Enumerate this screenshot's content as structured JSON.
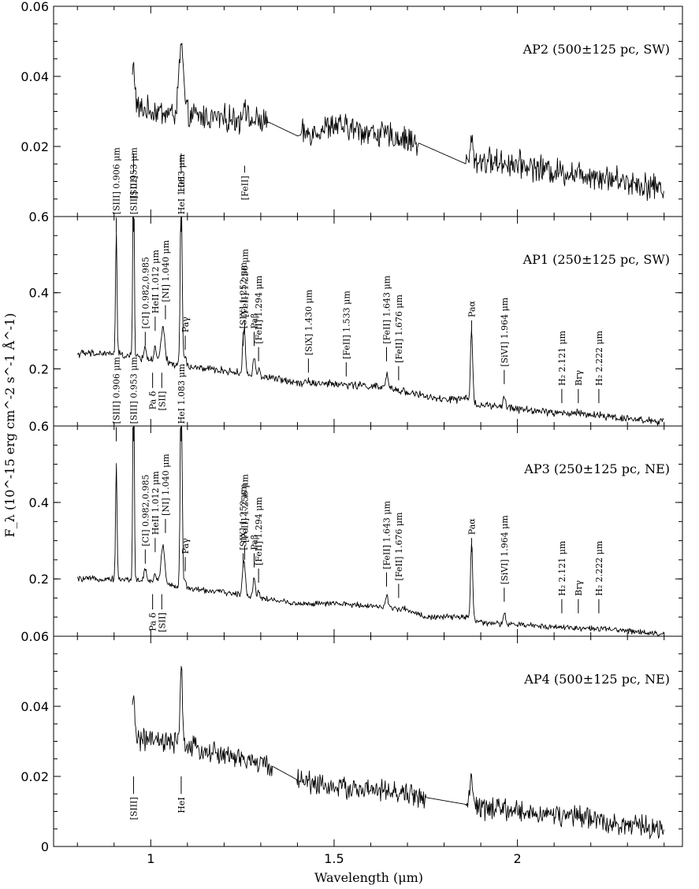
{
  "chart_data": {
    "type": "line",
    "xlabel": "Wavelength (μm)",
    "ylabel": "F_λ (10^-15 erg cm^-2 s^-1 Å^-1)",
    "xlim": [
      0.735,
      2.45
    ],
    "x_ticks": [
      1,
      1.5,
      2
    ],
    "x_tick_labels": [
      "1",
      "1.5",
      "2"
    ],
    "panels": [
      {
        "name": "AP2 (500±125 pc, SW)",
        "ylim": [
          0,
          0.06
        ],
        "y_ticks": [
          0.02,
          0.04,
          0.06
        ],
        "y_tick_labels": [
          "0.02",
          "0.04",
          "0.06"
        ],
        "series": [
          {
            "continuum": [
              [
                0.95,
                0.031
              ],
              [
                1.08,
                0.029
              ],
              [
                1.2,
                0.028
              ],
              [
                1.32,
                0.027
              ],
              [
                1.4,
                0.023
              ],
              [
                1.5,
                0.026
              ],
              [
                1.6,
                0.024
              ],
              [
                1.7,
                0.022
              ],
              [
                1.73,
                0.021
              ],
              [
                1.86,
                0.015
              ],
              [
                1.9,
                0.016
              ],
              [
                2.0,
                0.015
              ],
              [
                2.1,
                0.013
              ],
              [
                2.2,
                0.012
              ],
              [
                2.3,
                0.01
              ],
              [
                2.4,
                0.008
              ]
            ],
            "gaps": [
              [
                1.32,
                1.41
              ],
              [
                1.73,
                1.86
              ]
            ],
            "noise": 0.003,
            "lines": [
              [
                1.083,
                0.02,
                0.006
              ],
              [
                0.953,
                0.012,
                0.004
              ],
              [
                1.256,
                0.006,
                0.004
              ],
              [
                1.875,
                0.006,
                0.004
              ]
            ]
          }
        ],
        "annotations": [
          {
            "text": "[SIII]",
            "x": 0.953,
            "y_top": 0.018,
            "y_bot": 0.0125,
            "dir": "down"
          },
          {
            "text": "HeI",
            "x": 1.083,
            "y_top": 0.018,
            "y_bot": 0.0125,
            "dir": "down"
          },
          {
            "text": "[FeII]",
            "x": 1.256,
            "y_top": 0.0145,
            "y_bot": 0.0125,
            "dir": "down"
          }
        ]
      },
      {
        "name": "AP1 (250±125 pc, SW)",
        "ylim": [
          0.05,
          0.6
        ],
        "y_ticks": [
          0.2,
          0.4,
          0.6
        ],
        "y_tick_labels": [
          "0.2",
          "0.4",
          "0.6"
        ],
        "series": [
          {
            "continuum": [
              [
                0.8,
                0.24
              ],
              [
                0.9,
                0.24
              ],
              [
                1.0,
                0.225
              ],
              [
                1.1,
                0.205
              ],
              [
                1.2,
                0.195
              ],
              [
                1.3,
                0.18
              ],
              [
                1.4,
                0.165
              ],
              [
                1.5,
                0.16
              ],
              [
                1.6,
                0.155
              ],
              [
                1.7,
                0.14
              ],
              [
                1.78,
                0.12
              ],
              [
                1.86,
                0.12
              ],
              [
                1.9,
                0.105
              ],
              [
                2.0,
                0.095
              ],
              [
                2.1,
                0.085
              ],
              [
                2.2,
                0.08
              ],
              [
                2.3,
                0.07
              ],
              [
                2.4,
                0.06
              ]
            ],
            "gaps": [],
            "noise": 0.008,
            "lines": [
              [
                0.906,
                0.32,
                0.002
              ],
              [
                0.953,
                0.55,
                0.002
              ],
              [
                0.985,
                0.03,
                0.003
              ],
              [
                1.012,
                0.03,
                0.003
              ],
              [
                1.033,
                0.09,
                0.005
              ],
              [
                1.083,
                0.5,
                0.0025
              ],
              [
                1.094,
                0.03,
                0.003
              ],
              [
                1.252,
                0.06,
                0.003
              ],
              [
                1.256,
                0.08,
                0.003
              ],
              [
                1.282,
                0.05,
                0.003
              ],
              [
                1.294,
                0.02,
                0.003
              ],
              [
                1.43,
                0.01,
                0.003
              ],
              [
                1.644,
                0.04,
                0.003
              ],
              [
                1.875,
                0.19,
                0.003
              ],
              [
                1.964,
                0.03,
                0.003
              ],
              [
                2.166,
                0.008,
                0.003
              ]
            ]
          }
        ],
        "annotations": [
          {
            "text": "[SIII] 0.906 μm",
            "x": 0.906,
            "y_top": 0.55,
            "y_bot": 0.56,
            "dir": "up"
          },
          {
            "text": "[SIII] 0.953 μm",
            "x": 0.953,
            "y_top": 0.55,
            "y_bot": 0.56,
            "dir": "up"
          },
          {
            "text": "[CI] 0.982,0.985",
            "x": 0.985,
            "y_top": 0.3,
            "y_bot": 0.26,
            "dir": "up"
          },
          {
            "text": "HeII 1.012 μm",
            "x": 1.012,
            "y_top": 0.35,
            "y_bot": 0.3,
            "dir": "up"
          },
          {
            "text": "[NI] 1.040 μm",
            "x": 1.04,
            "y_top": 0.35,
            "y_bot": 0.33,
            "dir": "up"
          },
          {
            "text": "HeI 1.083 μm",
            "x": 1.083,
            "y_top": 0.55,
            "y_bot": 0.56,
            "dir": "up"
          },
          {
            "text": "Paγ",
            "x": 1.094,
            "y_top": 0.3,
            "y_bot": 0.25,
            "dir": "up"
          },
          {
            "text": "[SIX] 1.252 μm",
            "x": 1.252,
            "y_top": 0.3,
            "y_bot": 0.26,
            "dir": "up"
          },
          {
            "text": "[FeII] 1.256 μm",
            "x": 1.256,
            "y_top": 0.32,
            "y_bot": 0.29,
            "dir": "up"
          },
          {
            "text": "Paβ",
            "x": 1.282,
            "y_top": 0.29,
            "y_bot": 0.26,
            "dir": "up"
          },
          {
            "text": "[FeII] 1.294 μm",
            "x": 1.294,
            "y_top": 0.25,
            "y_bot": 0.22,
            "dir": "up"
          },
          {
            "text": "[SiX] 1.430 μm",
            "x": 1.43,
            "y_top": 0.23,
            "y_bot": 0.19,
            "dir": "up"
          },
          {
            "text": "[FeII] 1.533 μm",
            "x": 1.533,
            "y_top": 0.2,
            "y_bot": 0.18,
            "dir": "up"
          },
          {
            "text": "[FeII] 1.643 μm",
            "x": 1.643,
            "y_top": 0.26,
            "y_bot": 0.22,
            "dir": "up"
          },
          {
            "text": "[FeII] 1.676 μm",
            "x": 1.676,
            "y_top": 0.2,
            "y_bot": 0.17,
            "dir": "up"
          },
          {
            "text": "Paα",
            "x": 1.875,
            "y_top": 0.34,
            "y_bot": 0.29,
            "dir": "up"
          },
          {
            "text": "[SiVI] 1.964 μm",
            "x": 1.964,
            "y_top": 0.2,
            "y_bot": 0.16,
            "dir": "up"
          },
          {
            "text": "H₂ 2.121 μm",
            "x": 2.121,
            "y_top": 0.15,
            "y_bot": 0.11,
            "dir": "up"
          },
          {
            "text": "Brγ",
            "x": 2.166,
            "y_top": 0.15,
            "y_bot": 0.11,
            "dir": "up"
          },
          {
            "text": "H₂ 2.222 μm",
            "x": 2.222,
            "y_top": 0.15,
            "y_bot": 0.11,
            "dir": "up"
          },
          {
            "text": "Pa δ",
            "x": 1.005,
            "y_top": 0.19,
            "y_bot": 0.15,
            "dir": "down"
          },
          {
            "text": "[SII]",
            "x": 1.03,
            "y_top": 0.19,
            "y_bot": 0.15,
            "dir": "down"
          }
        ]
      },
      {
        "name": "AP3 (250±125 pc, NE)",
        "ylim": [
          0.05,
          0.6
        ],
        "y_ticks": [
          0.2,
          0.4,
          0.6
        ],
        "y_tick_labels": [
          "0.2",
          "0.4",
          "0.6"
        ],
        "series": [
          {
            "continuum": [
              [
                0.8,
                0.2
              ],
              [
                0.9,
                0.2
              ],
              [
                1.0,
                0.195
              ],
              [
                1.1,
                0.175
              ],
              [
                1.2,
                0.165
              ],
              [
                1.3,
                0.15
              ],
              [
                1.4,
                0.135
              ],
              [
                1.5,
                0.135
              ],
              [
                1.6,
                0.13
              ],
              [
                1.7,
                0.12
              ],
              [
                1.75,
                0.1
              ],
              [
                1.86,
                0.1
              ],
              [
                1.9,
                0.085
              ],
              [
                2.0,
                0.08
              ],
              [
                2.1,
                0.075
              ],
              [
                2.2,
                0.07
              ],
              [
                2.3,
                0.065
              ],
              [
                2.4,
                0.055
              ]
            ],
            "gaps": [],
            "noise": 0.006,
            "lines": [
              [
                0.906,
                0.3,
                0.002
              ],
              [
                0.953,
                0.6,
                0.002
              ],
              [
                0.985,
                0.03,
                0.003
              ],
              [
                1.012,
                0.02,
                0.003
              ],
              [
                1.033,
                0.1,
                0.005
              ],
              [
                1.083,
                0.6,
                0.0025
              ],
              [
                1.094,
                0.02,
                0.003
              ],
              [
                1.252,
                0.06,
                0.003
              ],
              [
                1.256,
                0.06,
                0.003
              ],
              [
                1.282,
                0.05,
                0.003
              ],
              [
                1.294,
                0.02,
                0.003
              ],
              [
                1.644,
                0.03,
                0.003
              ],
              [
                1.875,
                0.2,
                0.003
              ],
              [
                1.964,
                0.03,
                0.003
              ]
            ]
          }
        ],
        "annotations": [
          {
            "text": "[SIII] 0.906 μm",
            "x": 0.906,
            "y_top": 0.55,
            "y_bot": 0.56,
            "dir": "up"
          },
          {
            "text": "[SIII] 0.953 μm",
            "x": 0.953,
            "y_top": 0.55,
            "y_bot": 0.56,
            "dir": "up"
          },
          {
            "text": "[CI] 0.982,0.985",
            "x": 0.985,
            "y_top": 0.27,
            "y_bot": 0.24,
            "dir": "up"
          },
          {
            "text": "HeII 1.012 μm",
            "x": 1.012,
            "y_top": 0.32,
            "y_bot": 0.27,
            "dir": "up"
          },
          {
            "text": "[NI] 1.040 μm",
            "x": 1.04,
            "y_top": 0.35,
            "y_bot": 0.32,
            "dir": "up"
          },
          {
            "text": "HeI 1.083 μm",
            "x": 1.083,
            "y_top": 0.55,
            "y_bot": 0.56,
            "dir": "up"
          },
          {
            "text": "Paγ",
            "x": 1.094,
            "y_top": 0.28,
            "y_bot": 0.22,
            "dir": "up"
          },
          {
            "text": "[SIX] 1.252 μm",
            "x": 1.252,
            "y_top": 0.28,
            "y_bot": 0.23,
            "dir": "up"
          },
          {
            "text": "[FeII] 1.256 μm",
            "x": 1.256,
            "y_top": 0.29,
            "y_bot": 0.25,
            "dir": "up"
          },
          {
            "text": "Paβ",
            "x": 1.282,
            "y_top": 0.26,
            "y_bot": 0.23,
            "dir": "up"
          },
          {
            "text": "[FeII] 1.294 μm",
            "x": 1.294,
            "y_top": 0.22,
            "y_bot": 0.19,
            "dir": "up"
          },
          {
            "text": "[FeII] 1.643 μm",
            "x": 1.643,
            "y_top": 0.23,
            "y_bot": 0.18,
            "dir": "up"
          },
          {
            "text": "[FeII] 1.676 μm",
            "x": 1.676,
            "y_top": 0.18,
            "y_bot": 0.15,
            "dir": "up"
          },
          {
            "text": "Paα",
            "x": 1.875,
            "y_top": 0.32,
            "y_bot": 0.27,
            "dir": "up"
          },
          {
            "text": "[SiVI] 1.964 μm",
            "x": 1.964,
            "y_top": 0.19,
            "y_bot": 0.14,
            "dir": "up"
          },
          {
            "text": "H₂ 2.121 μm",
            "x": 2.121,
            "y_top": 0.15,
            "y_bot": 0.11,
            "dir": "up"
          },
          {
            "text": "Brγ",
            "x": 2.166,
            "y_top": 0.15,
            "y_bot": 0.11,
            "dir": "up"
          },
          {
            "text": "H₂ 2.222 μm",
            "x": 2.222,
            "y_top": 0.15,
            "y_bot": 0.11,
            "dir": "up"
          },
          {
            "text": "Pa δ",
            "x": 1.005,
            "y_top": 0.16,
            "y_bot": 0.12,
            "dir": "down"
          },
          {
            "text": "[SII]",
            "x": 1.03,
            "y_top": 0.16,
            "y_bot": 0.12,
            "dir": "down"
          }
        ]
      },
      {
        "name": "AP4 (500±125 pc, NE)",
        "ylim": [
          0,
          0.06
        ],
        "y_ticks": [
          0,
          0.02,
          0.04,
          0.06
        ],
        "y_tick_labels": [
          "0",
          "0.02",
          "0.04",
          "0.06"
        ],
        "series": [
          {
            "continuum": [
              [
                0.95,
                0.031
              ],
              [
                1.08,
                0.029
              ],
              [
                1.2,
                0.026
              ],
              [
                1.33,
                0.023
              ],
              [
                1.4,
                0.019
              ],
              [
                1.5,
                0.017
              ],
              [
                1.6,
                0.016
              ],
              [
                1.7,
                0.015
              ],
              [
                1.75,
                0.014
              ],
              [
                1.86,
                0.012
              ],
              [
                1.9,
                0.011
              ],
              [
                2.0,
                0.01
              ],
              [
                2.1,
                0.009
              ],
              [
                2.2,
                0.008
              ],
              [
                2.3,
                0.006
              ],
              [
                2.4,
                0.005
              ]
            ],
            "gaps": [
              [
                1.33,
                1.4
              ],
              [
                1.75,
                1.86
              ]
            ],
            "noise": 0.0025,
            "lines": [
              [
                1.083,
                0.025,
                0.003
              ],
              [
                0.953,
                0.01,
                0.004
              ],
              [
                1.875,
                0.007,
                0.004
              ]
            ]
          }
        ],
        "annotations": [
          {
            "text": "[SIII]",
            "x": 0.953,
            "y_top": 0.02,
            "y_bot": 0.015,
            "dir": "down"
          },
          {
            "text": "HeI",
            "x": 1.083,
            "y_top": 0.02,
            "y_bot": 0.015,
            "dir": "down"
          }
        ]
      }
    ]
  }
}
